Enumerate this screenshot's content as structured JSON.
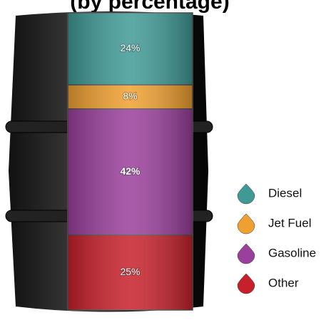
{
  "chart_data": {
    "type": "stacked-barrel",
    "title": "(by percentage)",
    "series": [
      {
        "name": "Diesel",
        "color": "#3f9a96",
        "values": [
          24
        ],
        "value_labels": [
          "24%"
        ]
      },
      {
        "name": "Jet Fuel",
        "color": "#f0a030",
        "values": [
          8
        ],
        "value_labels": [
          "8%"
        ]
      },
      {
        "name": "Gasoline",
        "color": "#9a3f9c",
        "values": [
          42
        ],
        "value_labels": [
          "42%"
        ]
      },
      {
        "name": "Other",
        "color": "#c8202a",
        "values": [
          25
        ],
        "value_labels": [
          "25%"
        ]
      }
    ],
    "legend": "right"
  }
}
